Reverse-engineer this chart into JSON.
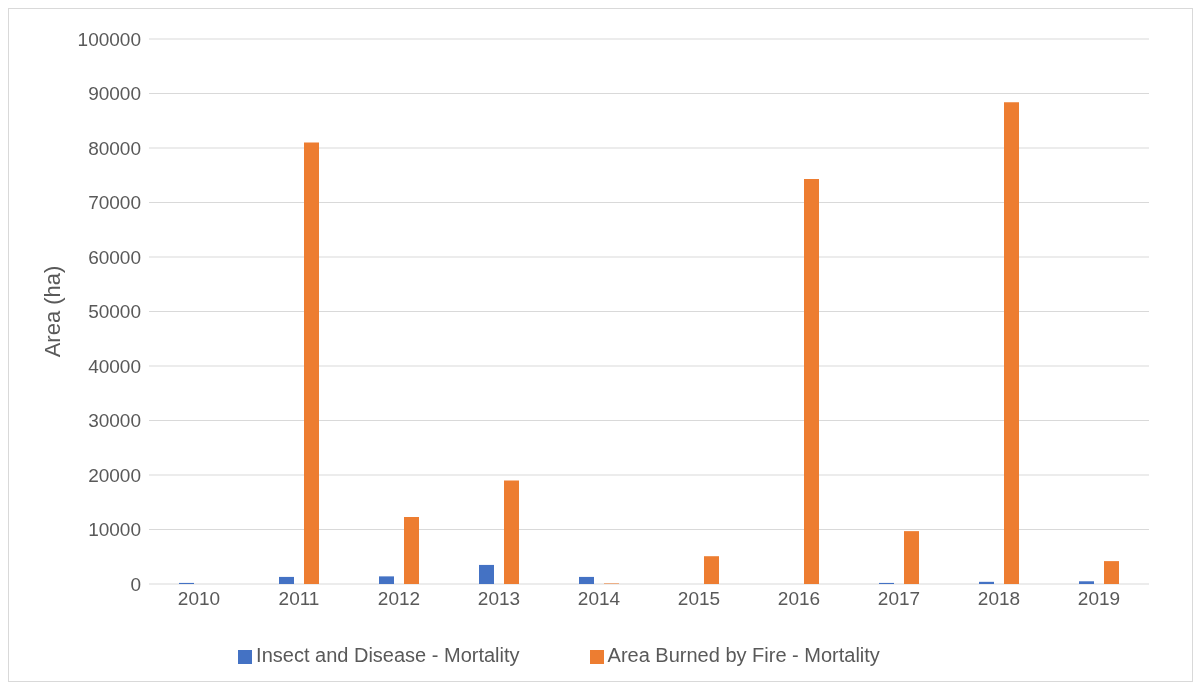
{
  "chart_data": {
    "type": "bar",
    "ylabel": "Area (ha)",
    "categories": [
      "2010",
      "2011",
      "2012",
      "2013",
      "2014",
      "2015",
      "2016",
      "2017",
      "2018",
      "2019"
    ],
    "series": [
      {
        "name": "Insect and Disease - Mortality",
        "color": "#4472c4",
        "values": [
          200,
          1300,
          1400,
          3500,
          1300,
          0,
          0,
          200,
          400,
          500
        ]
      },
      {
        "name": "Area Burned by Fire - Mortality",
        "color": "#ed7d31",
        "values": [
          0,
          81000,
          12300,
          19000,
          100,
          5100,
          74300,
          9700,
          88400,
          4200
        ]
      }
    ],
    "ylim": [
      0,
      100000
    ],
    "yticks": [
      0,
      10000,
      20000,
      30000,
      40000,
      50000,
      60000,
      70000,
      80000,
      90000,
      100000
    ],
    "grid": "y",
    "legend": "bottom"
  }
}
